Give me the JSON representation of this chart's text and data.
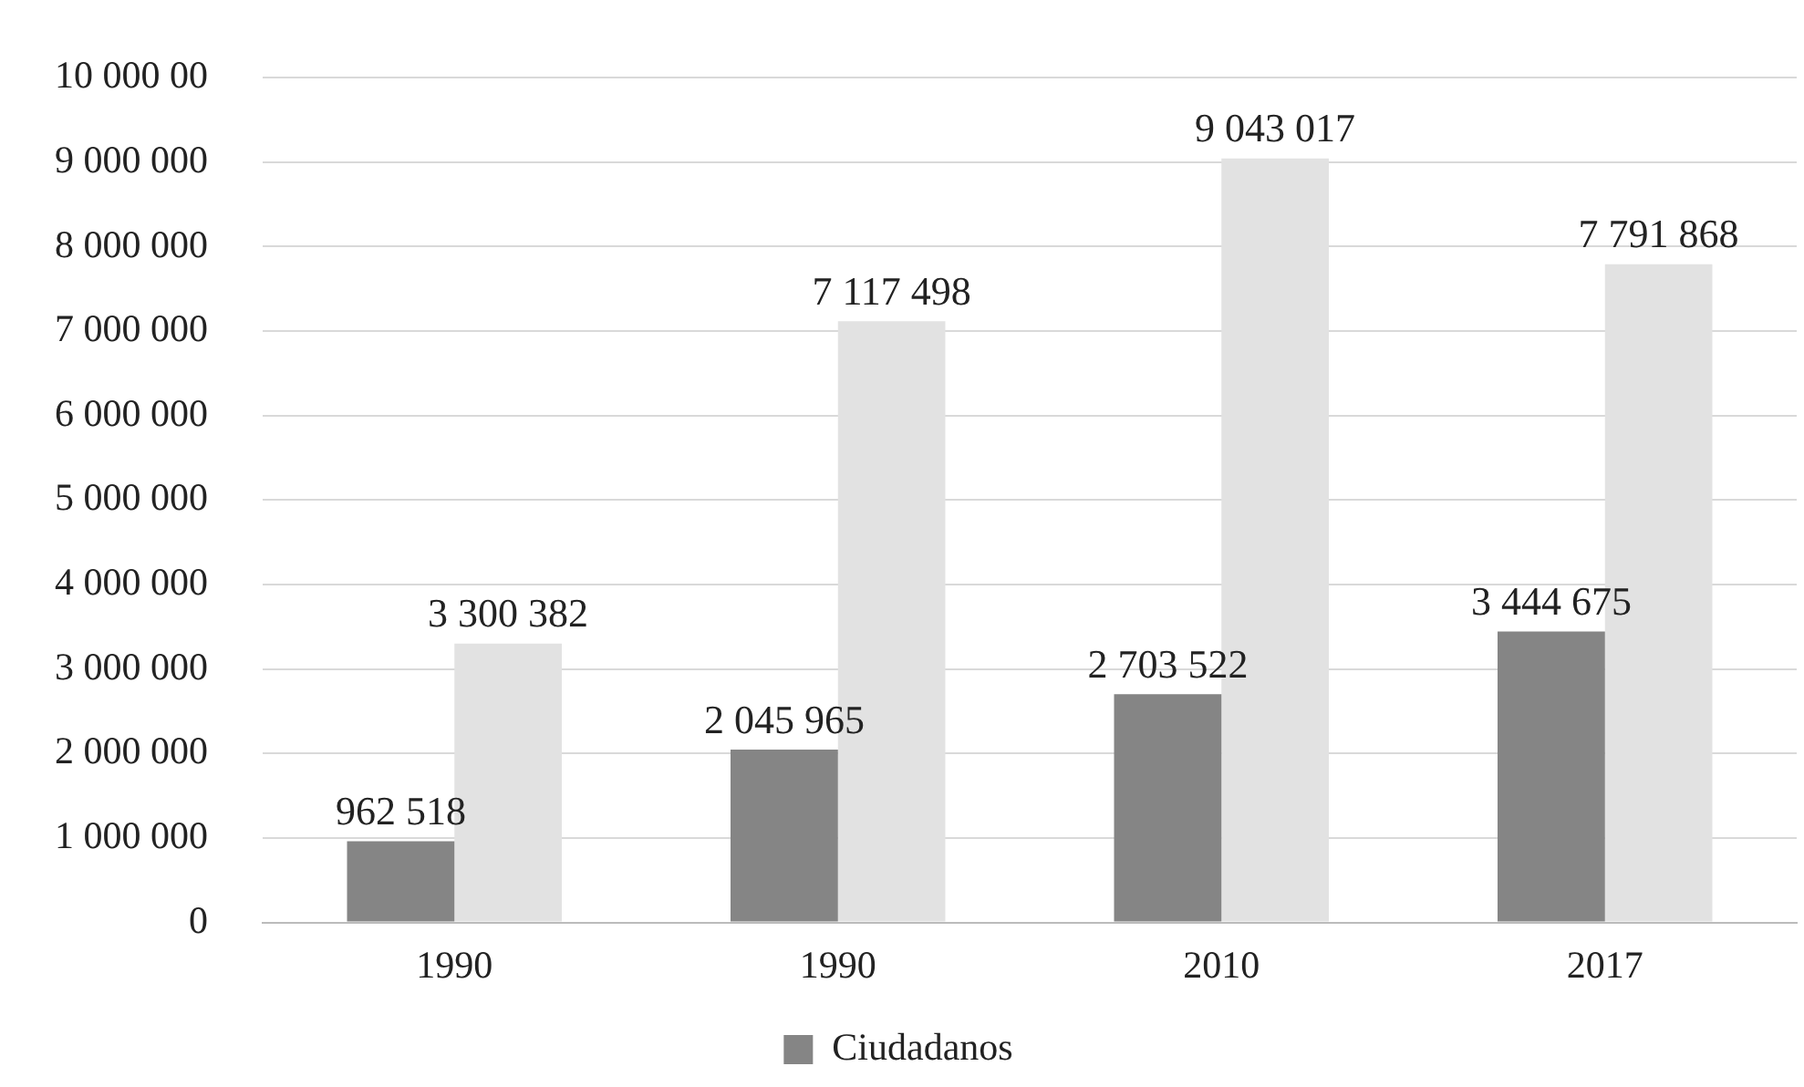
{
  "chart_data": {
    "type": "bar",
    "categories": [
      "1990",
      "1990",
      "2010",
      "2017"
    ],
    "series": [
      {
        "name": "Ciudadanos",
        "color": "#858585",
        "values": [
          962518,
          2045965,
          2703522,
          3444675
        ],
        "value_labels": [
          "962 518",
          "2 045 965",
          "2 703 522",
          "3 444 675"
        ]
      },
      {
        "color": "#e2e2e2",
        "values": [
          3300382,
          7117498,
          9043017,
          7791868
        ],
        "value_labels": [
          "3 300 382",
          "7 117 498",
          "9 043 017",
          "7 791 868"
        ]
      }
    ],
    "ylim": [
      0,
      10000000
    ],
    "yticks": [
      0,
      {
        "value": 1000000,
        "label": "1 000 000"
      },
      {
        "value": 2000000,
        "label": "2 000 000"
      },
      {
        "value": 3000000,
        "label": "3 000 000"
      },
      {
        "value": 4000000,
        "label": "4 000 000"
      },
      {
        "value": 5000000,
        "label": "5 000 000"
      },
      {
        "value": 6000000,
        "label": "6 000 000"
      },
      {
        "value": 7000000,
        "label": "7 000 000"
      },
      {
        "value": 8000000,
        "label": "8 000 000"
      },
      {
        "value": 9000000,
        "label": "9 000 000"
      },
      {
        "value": 10000000,
        "label": "10 000 00"
      }
    ],
    "grid": "y",
    "legend": "bottom"
  }
}
